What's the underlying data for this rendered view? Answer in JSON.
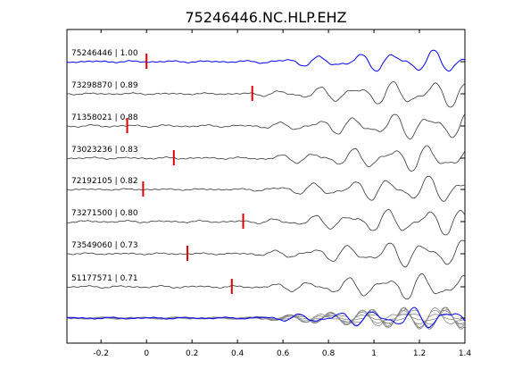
{
  "chart_data": {
    "type": "line",
    "title": "75246446.NC.HLP.EHZ",
    "xlabel": "",
    "ylabel": "",
    "xlim": [
      -0.35,
      1.4
    ],
    "xticks": [
      -0.2,
      0,
      0.2,
      0.4,
      0.6,
      0.8,
      1,
      1.2,
      1.4
    ],
    "xtick_labels": [
      "-0.2",
      "0",
      "0.2",
      "0.4",
      "0.6",
      "0.8",
      "1",
      "1.2",
      "1.4"
    ],
    "grid": false,
    "traces": [
      {
        "event_id": "75246446",
        "cc": "1.00",
        "label": "75246446 | 1.00",
        "pick_time": 0.0,
        "color": "#0000ff"
      },
      {
        "event_id": "73298870",
        "cc": "0.89",
        "label": "73298870 | 0.89",
        "pick_time": 0.465,
        "color": "#333333"
      },
      {
        "event_id": "71358021",
        "cc": "0.88",
        "label": "71358021 | 0.88",
        "pick_time": -0.085,
        "color": "#333333"
      },
      {
        "event_id": "73023236",
        "cc": "0.83",
        "label": "73023236 | 0.83",
        "pick_time": 0.12,
        "color": "#333333"
      },
      {
        "event_id": "72192105",
        "cc": "0.82",
        "label": "72192105 | 0.82",
        "pick_time": -0.015,
        "color": "#333333"
      },
      {
        "event_id": "73271500",
        "cc": "0.80",
        "label": "73271500 | 0.80",
        "pick_time": 0.425,
        "color": "#333333"
      },
      {
        "event_id": "73549060",
        "cc": "0.73",
        "label": "73549060 | 0.73",
        "pick_time": 0.18,
        "color": "#333333"
      },
      {
        "event_id": "51177571",
        "cc": "0.71",
        "label": "51177571 | 0.71",
        "pick_time": 0.375,
        "color": "#333333"
      }
    ],
    "stack": {
      "description_color_reference": "#0000ff",
      "description_color_others": "#888888"
    },
    "pick_color": "#dd0000"
  }
}
